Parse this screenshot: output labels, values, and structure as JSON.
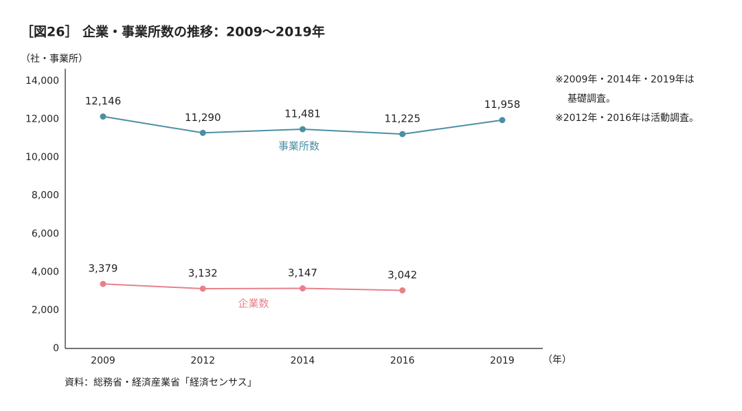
{
  "chart_data": {
    "type": "line",
    "title": "［図26］ 企業・事業所数の推移：2009〜2019年",
    "y_label": "（社・事業所）",
    "x_label": "（年）",
    "source": "資料：総務省・経済産業省「経済センサス」",
    "notes": [
      "※2009年・2014年・2019年は",
      "基礎調査。",
      "※2012年・2016年は活動調査。"
    ],
    "categories": [
      "2009",
      "2012",
      "2014",
      "2016",
      "2019"
    ],
    "series": [
      {
        "name": "事業所数",
        "color": "#4a8fa3",
        "values": [
          12146,
          11290,
          11481,
          11225,
          11958
        ],
        "value_labels": [
          "12,146",
          "11,290",
          "11,481",
          "11,225",
          "11,958"
        ]
      },
      {
        "name": "企業数",
        "color": "#e8808a",
        "values": [
          3379,
          3132,
          3147,
          3042,
          null
        ],
        "value_labels": [
          "3,379",
          "3,132",
          "3,147",
          "3,042",
          null
        ]
      }
    ],
    "ylim": [
      0,
      14000
    ],
    "yticks": [
      0,
      {
        "value": 2000,
        "label": "2,000"
      },
      {
        "value": 4000,
        "label": "4,000"
      },
      {
        "value": 6000,
        "label": "6,000"
      },
      {
        "value": 8000,
        "label": "8,000"
      },
      {
        "value": 10000,
        "label": "10,000"
      },
      {
        "value": 12000,
        "label": "12,000"
      },
      {
        "value": 14000,
        "label": "14,000"
      }
    ],
    "grid": false
  }
}
